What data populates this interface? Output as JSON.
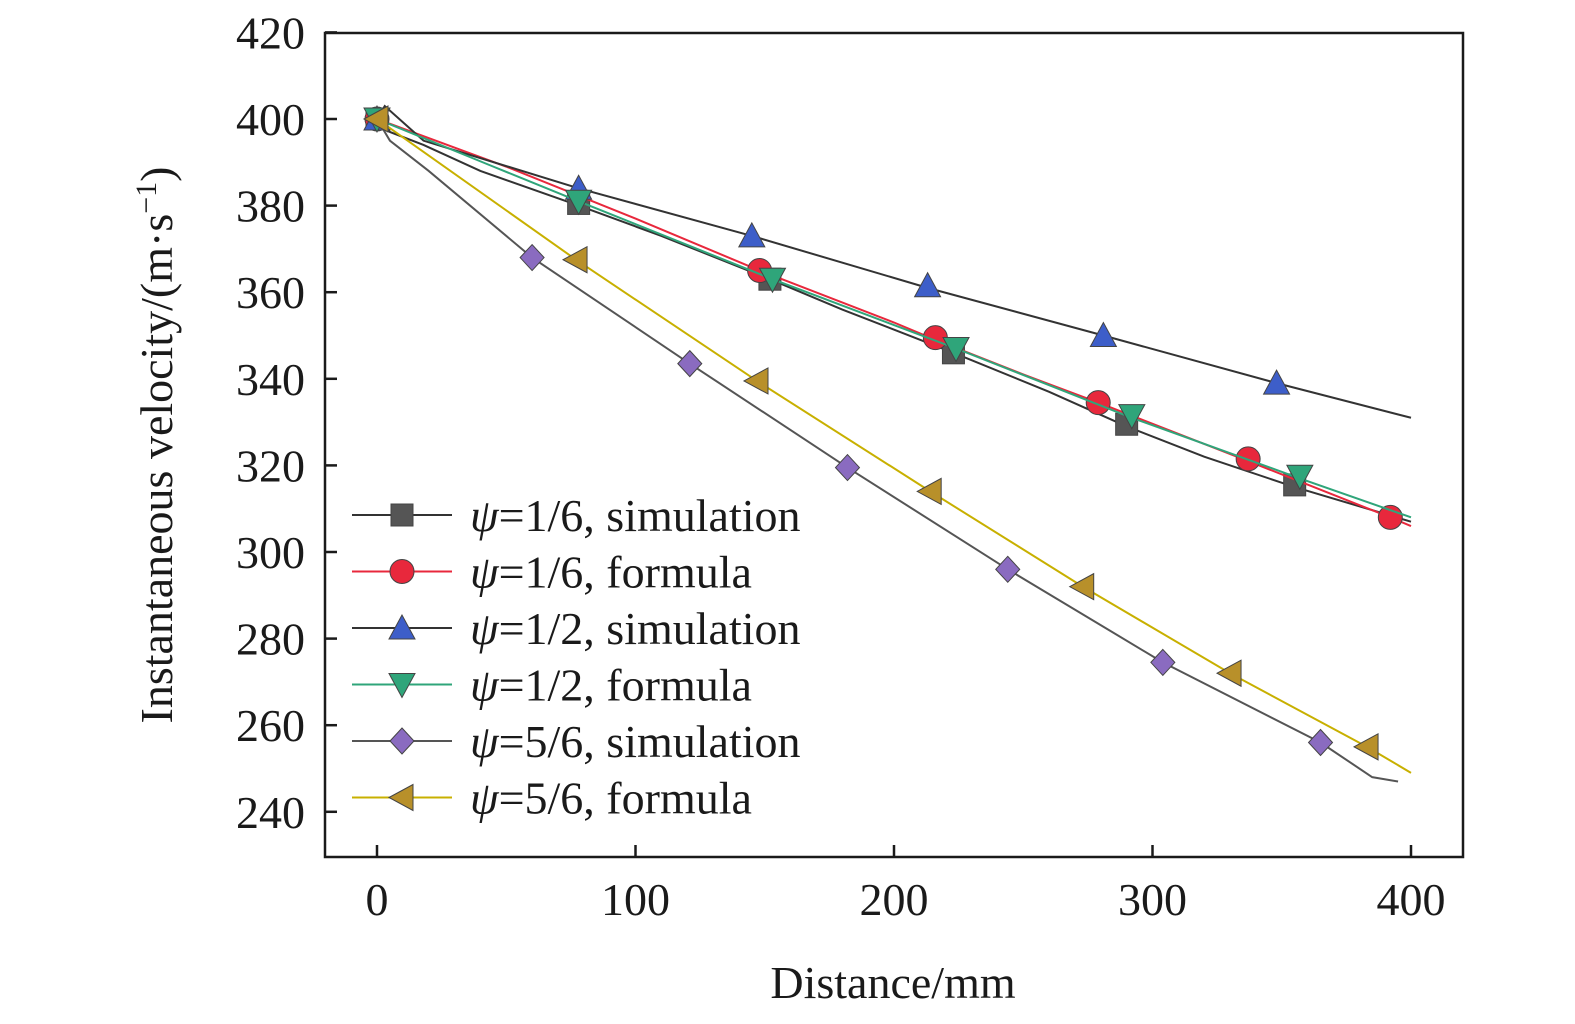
{
  "chart_data": {
    "type": "line",
    "title": "",
    "xlabel": "Distance/mm",
    "ylabel": "Instantaneous velocity/(m·s",
    "ylabel_exp": "−1",
    "ylabel_close": ")",
    "xlim": [
      -20,
      420
    ],
    "ylim": [
      230,
      420
    ],
    "xticks": [
      0,
      100,
      200,
      300,
      400
    ],
    "yticks": [
      240,
      260,
      280,
      300,
      320,
      340,
      360,
      380,
      400,
      420
    ],
    "grid": false,
    "legend_position": "bottom-left",
    "series": [
      {
        "name_prefix": "ψ",
        "name_suffix": "=1/6, simulation",
        "color": "#555555",
        "line_color": "#333333",
        "marker": "square",
        "x": [
          0,
          5,
          18,
          40,
          78,
          110,
          152,
          180,
          223,
          260,
          290,
          320,
          355,
          400
        ],
        "y": [
          400,
          397,
          394,
          388,
          380,
          373,
          363,
          356,
          346,
          337,
          329,
          322,
          315,
          307
        ],
        "marker_x": [
          0,
          78,
          152,
          223,
          290,
          355
        ],
        "marker_y": [
          400,
          380.5,
          363,
          346,
          329.5,
          315.5
        ]
      },
      {
        "name_prefix": "ψ",
        "name_suffix": "=1/6, formula",
        "color": "#e8283c",
        "line_color": "#e8283c",
        "marker": "circle",
        "x": [
          0,
          50,
          100,
          148,
          200,
          216,
          250,
          279,
          337,
          392,
          400
        ],
        "y": [
          400,
          389,
          377,
          365,
          353,
          349,
          341,
          334.5,
          321,
          308,
          306
        ],
        "marker_x": [
          0,
          148,
          216,
          279,
          337,
          392
        ],
        "marker_y": [
          400,
          365,
          349.5,
          334.5,
          321.5,
          308
        ]
      },
      {
        "name_prefix": "ψ",
        "name_suffix": "=1/2, simulation",
        "color": "#3d5ec9",
        "line_color": "#333333",
        "marker": "triangle-up",
        "x": [
          0,
          3,
          18,
          78,
          145,
          213,
          281,
          348,
          400
        ],
        "y": [
          400,
          403,
          395,
          384,
          373,
          361,
          350,
          339,
          331
        ],
        "marker_x": [
          0,
          78,
          145,
          213,
          281,
          348
        ],
        "marker_y": [
          400,
          384,
          373,
          361.5,
          350,
          339
        ]
      },
      {
        "name_prefix": "ψ",
        "name_suffix": "=1/2, formula",
        "color": "#2fa57a",
        "line_color": "#2fa57a",
        "marker": "triangle-down",
        "x": [
          0,
          45,
          78,
          153,
          224,
          292,
          357,
          400
        ],
        "y": [
          400,
          389,
          381,
          363,
          347,
          331,
          317,
          308
        ],
        "marker_x": [
          0,
          78,
          153,
          224,
          292,
          357
        ],
        "marker_y": [
          400,
          381,
          363,
          347,
          331.5,
          317.5
        ]
      },
      {
        "name_prefix": "ψ",
        "name_suffix": "=5/6, simulation",
        "color": "#8a6bc0",
        "line_color": "#555555",
        "marker": "diamond",
        "x": [
          0,
          5,
          20,
          60,
          121,
          182,
          244,
          304,
          365,
          385,
          395
        ],
        "y": [
          400,
          395,
          388,
          368,
          343.5,
          319.5,
          296,
          274.5,
          256,
          248,
          247
        ],
        "marker_x": [
          60,
          121,
          182,
          244,
          304,
          365
        ],
        "marker_y": [
          368,
          343.5,
          319.5,
          296,
          274.5,
          256
        ]
      },
      {
        "name_prefix": "ψ",
        "name_suffix": "=5/6, formula",
        "color": "#b8902a",
        "line_color": "#c8b000",
        "marker": "triangle-left",
        "x": [
          0,
          77,
          147,
          214,
          273,
          330,
          383,
          400
        ],
        "y": [
          400,
          367.5,
          339.5,
          314,
          292,
          272,
          255,
          249
        ],
        "marker_x": [
          0,
          77,
          147,
          214,
          273,
          330,
          383
        ],
        "marker_y": [
          400,
          367.5,
          339.5,
          314,
          292,
          272,
          255
        ]
      }
    ]
  }
}
